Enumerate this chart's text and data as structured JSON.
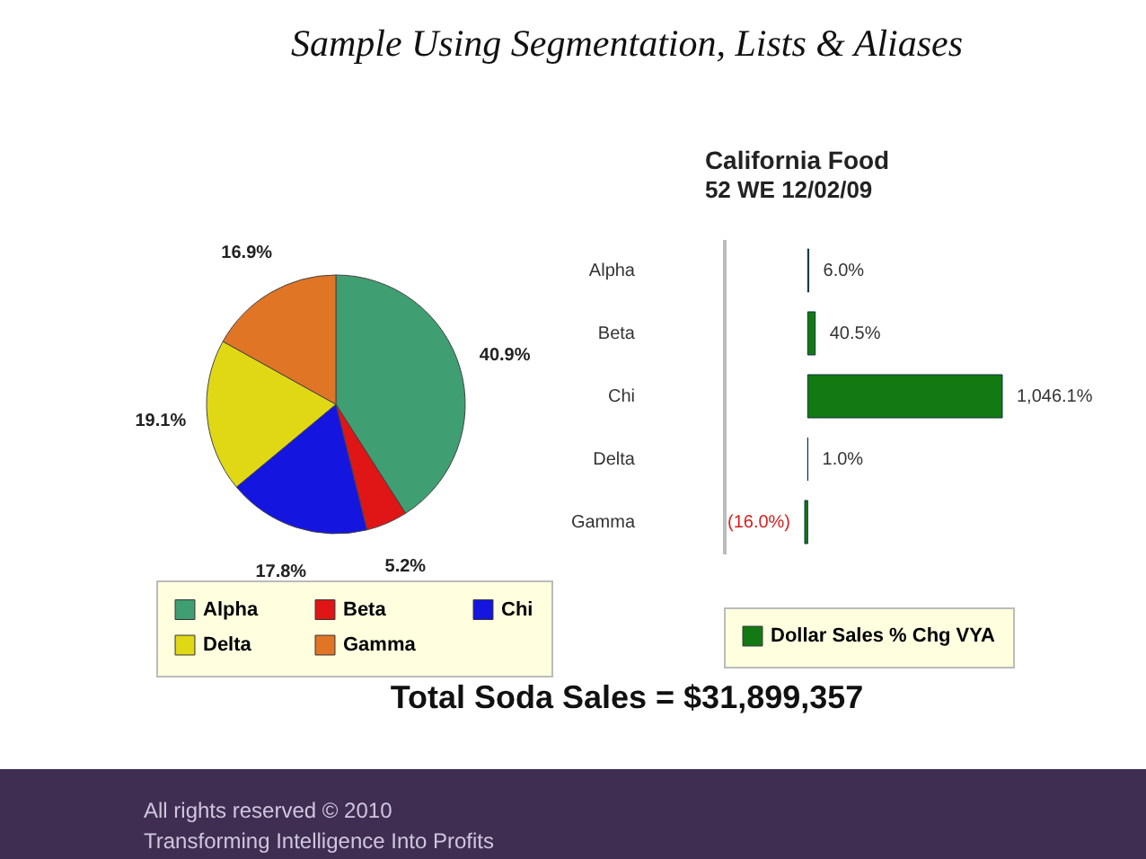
{
  "chart_data": [
    {
      "type": "pie",
      "categories": [
        "Alpha",
        "Beta",
        "Chi",
        "Delta",
        "Gamma"
      ],
      "values": [
        40.9,
        5.2,
        17.8,
        19.1,
        16.9
      ],
      "value_labels": [
        "40.9%",
        "5.2%",
        "17.8%",
        "19.1%",
        "16.9%"
      ],
      "colors": [
        "#3f9f72",
        "#e01515",
        "#1515e0",
        "#e0d815",
        "#e07525"
      ],
      "legend": "bottom",
      "annotations": [
        "Sample Using Segmentation, Lists & Aliases",
        "Total Soda Sales = $31,899,357",
        "All rights reserved © 2010",
        "Transforming Intelligence Into Profits"
      ]
    },
    {
      "type": "bar",
      "orientation": "horizontal",
      "title": "California Food",
      "subtitle": "52 WE 12/02/09",
      "categories": [
        "Alpha",
        "Beta",
        "Chi",
        "Delta",
        "Gamma"
      ],
      "legend": "bottom",
      "series": [
        {
          "name": "Dollar Sales % Chg VYA",
          "color": "#137a13",
          "values": [
            6.0,
            40.5,
            1046.1,
            1.0,
            -16.0
          ],
          "value_labels": [
            "6.0%",
            "40.5%",
            "1,046.1%",
            "1.0%",
            "(16.0%)"
          ]
        }
      ]
    }
  ]
}
